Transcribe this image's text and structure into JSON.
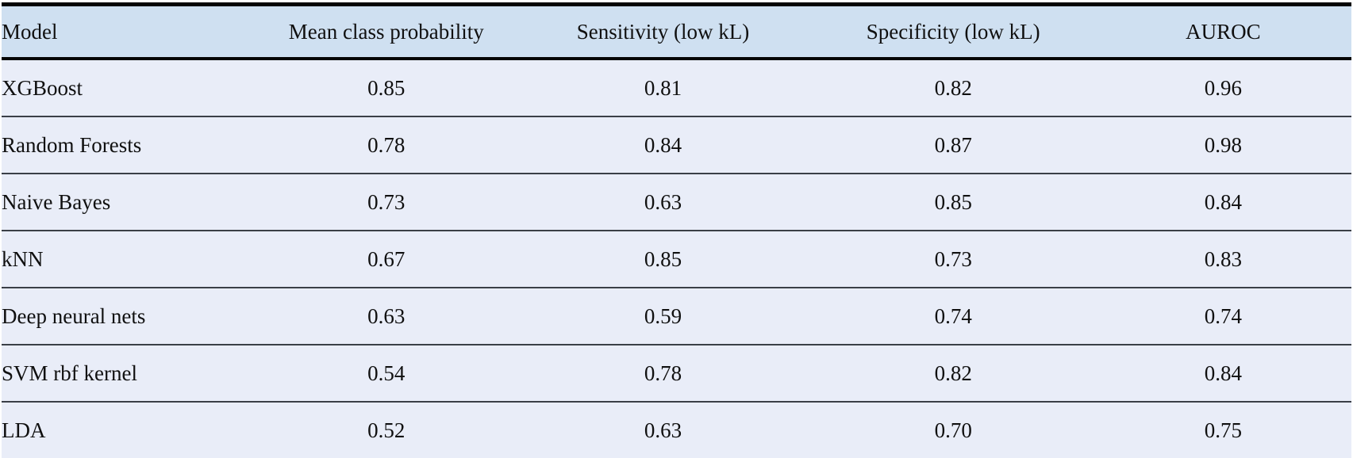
{
  "table": {
    "columns": [
      "Model",
      "Mean class probability",
      "Sensitivity (low kL)",
      "Specificity (low kL)",
      "AUROC"
    ],
    "rows": [
      {
        "model": "XGBoost",
        "values": [
          "0.85",
          "0.81",
          "0.82",
          "0.96"
        ]
      },
      {
        "model": "Random Forests",
        "values": [
          "0.78",
          "0.84",
          "0.87",
          "0.98"
        ]
      },
      {
        "model": "Naive Bayes",
        "values": [
          "0.73",
          "0.63",
          "0.85",
          "0.84"
        ]
      },
      {
        "model": "kNN",
        "values": [
          "0.67",
          "0.85",
          "0.73",
          "0.83"
        ]
      },
      {
        "model": "Deep neural nets",
        "values": [
          "0.63",
          "0.59",
          "0.74",
          "0.74"
        ]
      },
      {
        "model": "SVM rbf kernel",
        "values": [
          "0.54",
          "0.78",
          "0.82",
          "0.84"
        ]
      },
      {
        "model": "LDA",
        "values": [
          "0.52",
          "0.63",
          "0.70",
          "0.75"
        ]
      }
    ]
  },
  "colors": {
    "header_bg": "#cfe0f1",
    "row_bg": "#e9edf8",
    "rule_heavy": "#050505",
    "rule_light": "#3a3f47",
    "text": "#101010"
  },
  "chart_data": {
    "type": "table",
    "title": "",
    "columns": [
      "Model",
      "Mean class probability",
      "Sensitivity (low kL)",
      "Specificity (low kL)",
      "AUROC"
    ],
    "rows": [
      [
        "XGBoost",
        0.85,
        0.81,
        0.82,
        0.96
      ],
      [
        "Random Forests",
        0.78,
        0.84,
        0.87,
        0.98
      ],
      [
        "Naive Bayes",
        0.73,
        0.63,
        0.85,
        0.84
      ],
      [
        "kNN",
        0.67,
        0.85,
        0.73,
        0.83
      ],
      [
        "Deep neural nets",
        0.63,
        0.59,
        0.74,
        0.74
      ],
      [
        "SVM rbf kernel",
        0.54,
        0.78,
        0.82,
        0.84
      ],
      [
        "LDA",
        0.52,
        0.63,
        0.7,
        0.75
      ]
    ]
  }
}
